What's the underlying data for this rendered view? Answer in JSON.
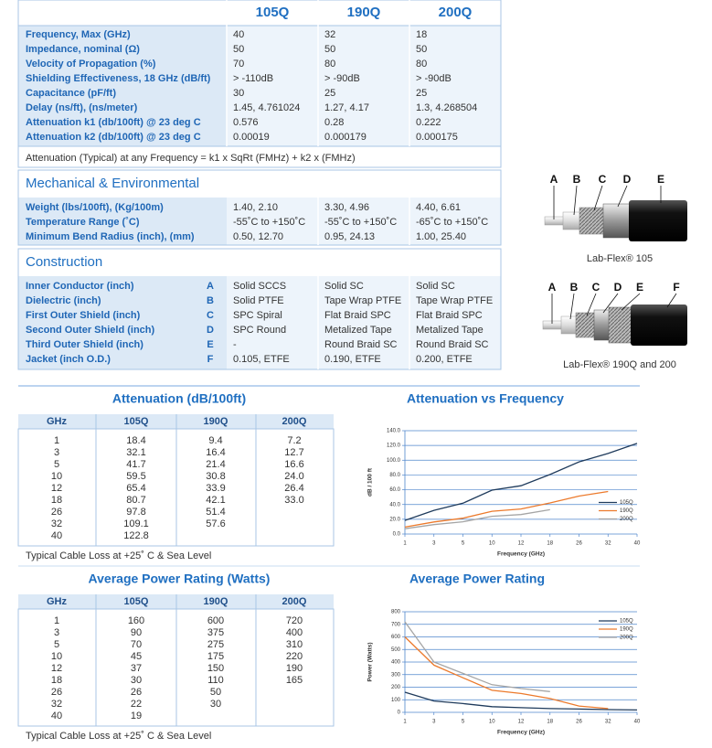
{
  "specs": {
    "header": [
      "105Q",
      "190Q",
      "200Q"
    ],
    "rows": [
      {
        "label": "Frequency, Max (GHz)",
        "values": [
          "40",
          "32",
          "18"
        ]
      },
      {
        "label": "Impedance, nominal (Ω)",
        "values": [
          "50",
          "50",
          "50"
        ]
      },
      {
        "label": "Velocity of Propagation (%)",
        "values": [
          "70",
          "80",
          "80"
        ]
      },
      {
        "label": "Shielding Effectiveness, 18 GHz (dB/ft)",
        "values": [
          "> -110dB",
          "> -90dB",
          "> -90dB"
        ]
      },
      {
        "label": "Capacitance (pF/ft)",
        "values": [
          "30",
          "25",
          "25"
        ]
      },
      {
        "label": "Delay (ns/ft), (ns/meter)",
        "values": [
          "1.45,  4.761024",
          "1.27,  4.17",
          "1.3,  4.268504"
        ]
      },
      {
        "label": "Attenuation k1 (db/100ft) @ 23 deg C",
        "values": [
          "0.576",
          "0.28",
          "0.222"
        ]
      },
      {
        "label": "Attenuation k2 (db/100ft) @ 23 deg C",
        "values": [
          "0.00019",
          "0.000179",
          "0.000175"
        ]
      }
    ],
    "formula": "Attenuation (Typical) at any Frequency = k1 x SqRt (FMHz) + k2 x (FMHz)"
  },
  "mechanical": {
    "title": "Mechanical & Environmental",
    "rows": [
      {
        "label": "Weight (lbs/100ft), (Kg/100m)",
        "values": [
          "1.40,  2.10",
          "3.30,  4.96",
          "4.40,  6.61"
        ]
      },
      {
        "label": "Temperature Range (˚C)",
        "values": [
          "-55˚C to +150˚C",
          "-55˚C to +150˚C",
          "-65˚C to +150˚C"
        ]
      },
      {
        "label": "Minimum Bend Radius (inch), (mm)",
        "values": [
          "0.50,  12.70",
          "0.95,  24.13",
          "1.00,  25.40"
        ]
      }
    ]
  },
  "construction": {
    "title": "Construction",
    "rows": [
      {
        "label": "Inner Conductor (inch)",
        "letter": "A",
        "values": [
          "Solid SCCS",
          "Solid SC",
          "Solid SC"
        ]
      },
      {
        "label": "Dielectric (inch)",
        "letter": "B",
        "values": [
          "Solid PTFE",
          "Tape Wrap PTFE",
          "Tape Wrap PTFE"
        ]
      },
      {
        "label": "First Outer Shield (inch)",
        "letter": "C",
        "values": [
          "SPC Spiral",
          "Flat Braid SPC",
          "Flat Braid SPC"
        ]
      },
      {
        "label": "Second Outer Shield (inch)",
        "letter": "D",
        "values": [
          "SPC Round",
          "Metalized Tape",
          "Metalized Tape"
        ]
      },
      {
        "label": "Third Outer Shield (inch)",
        "letter": "E",
        "values": [
          "-",
          "Round Braid SC",
          "Round Braid SC"
        ]
      },
      {
        "label": "Jacket (inch O.D.)",
        "letter": "F",
        "values": [
          "0.105,  ETFE",
          "0.190,  ETFE",
          "0.200,  ETFE"
        ]
      }
    ]
  },
  "figures": [
    {
      "letters": [
        "A",
        "B",
        "C",
        "D",
        "E"
      ],
      "caption": "Lab-Flex® 105"
    },
    {
      "letters": [
        "A",
        "B",
        "C",
        "D",
        "E",
        "F"
      ],
      "caption": "Lab-Flex® 190Q and 200"
    }
  ],
  "attenuation_table": {
    "title": "Attenuation (dB/100ft)",
    "header": [
      "GHz",
      "105Q",
      "190Q",
      "200Q"
    ],
    "rows": [
      [
        "1",
        "18.4",
        "9.4",
        "7.2"
      ],
      [
        "3",
        "32.1",
        "16.4",
        "12.7"
      ],
      [
        "5",
        "41.7",
        "21.4",
        "16.6"
      ],
      [
        "10",
        "59.5",
        "30.8",
        "24.0"
      ],
      [
        "12",
        "65.4",
        "33.9",
        "26.4"
      ],
      [
        "18",
        "80.7",
        "42.1",
        "33.0"
      ],
      [
        "26",
        "97.8",
        "51.4"
      ],
      [
        "32",
        "109.1",
        "57.6"
      ],
      [
        "40",
        "122.8"
      ]
    ],
    "note": "Typical Cable Loss at +25˚ C & Sea Level"
  },
  "power_table": {
    "title": "Average Power Rating (Watts)",
    "header": [
      "GHz",
      "105Q",
      "190Q",
      "200Q"
    ],
    "rows": [
      [
        "1",
        "160",
        "600",
        "720"
      ],
      [
        "3",
        "90",
        "375",
        "400"
      ],
      [
        "5",
        "70",
        "275",
        "310"
      ],
      [
        "10",
        "45",
        "175",
        "220"
      ],
      [
        "12",
        "37",
        "150",
        "190"
      ],
      [
        "18",
        "30",
        "110",
        "165"
      ],
      [
        "26",
        "26",
        "50"
      ],
      [
        "32",
        "22",
        "30"
      ],
      [
        "40",
        "19"
      ]
    ],
    "note": "Typical Cable Loss at +25˚ C & Sea Level"
  },
  "chart_data": [
    {
      "type": "line",
      "title": "Attenuation vs Frequency",
      "x_label": "Frequency (GHz)",
      "y_label": "dB / 100 ft",
      "categories": [
        "1",
        "3",
        "5",
        "10",
        "12",
        "18",
        "26",
        "32",
        "40"
      ],
      "series": [
        {
          "name": "105Q",
          "color": "#1f3b5c",
          "values": [
            18.4,
            32.1,
            41.7,
            59.5,
            65.4,
            80.7,
            97.8,
            109.1,
            122.8
          ]
        },
        {
          "name": "190Q",
          "color": "#ec7a2c",
          "values": [
            9.4,
            16.4,
            21.4,
            30.8,
            33.9,
            42.1,
            51.4,
            57.6,
            null
          ]
        },
        {
          "name": "200Q",
          "color": "#a5a5a5",
          "values": [
            7.2,
            12.7,
            16.6,
            24.0,
            26.4,
            33.0,
            null,
            null,
            null
          ]
        }
      ],
      "ylim": [
        0,
        140
      ],
      "yticks": [
        {
          "value": 0,
          "label": "0.0"
        },
        {
          "value": 20,
          "label": "20.0"
        },
        {
          "value": 40,
          "label": "40.0"
        },
        {
          "value": 60,
          "label": "60.0"
        },
        {
          "value": 80,
          "label": "80.0"
        },
        {
          "value": 100,
          "label": "100.0"
        },
        {
          "value": 120,
          "label": "120.0"
        },
        {
          "value": 140,
          "label": "140.0"
        }
      ],
      "grid": true,
      "legend": "center right"
    },
    {
      "type": "line",
      "title": "Average Power Rating",
      "x_label": "Frequency (GHz)",
      "y_label": "Power (Watts)",
      "categories": [
        "1",
        "3",
        "5",
        "10",
        "12",
        "18",
        "26",
        "32",
        "40"
      ],
      "series": [
        {
          "name": "105Q",
          "color": "#1f3b5c",
          "values": [
            160,
            90,
            70,
            45,
            37,
            30,
            26,
            22,
            19
          ]
        },
        {
          "name": "190Q",
          "color": "#ec7a2c",
          "values": [
            600,
            375,
            275,
            175,
            150,
            110,
            50,
            30,
            null
          ]
        },
        {
          "name": "200Q",
          "color": "#a5a5a5",
          "values": [
            720,
            400,
            310,
            220,
            190,
            165,
            null,
            null,
            null
          ]
        }
      ],
      "ylim": [
        0,
        800
      ],
      "yticks": [
        0,
        100,
        200,
        300,
        400,
        500,
        600,
        700,
        800
      ],
      "grid": true,
      "legend": "upper right"
    }
  ]
}
